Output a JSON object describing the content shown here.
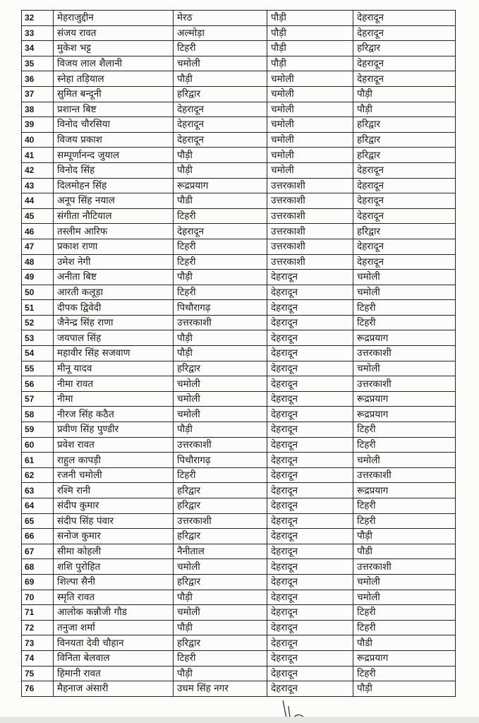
{
  "table": {
    "rows": [
      [
        "32",
        "मेहराजुद्दीन",
        "मेरठ",
        "पौड़ी",
        "देहरादून"
      ],
      [
        "33",
        "संजय रावत",
        "अल्मोड़ा",
        "पौड़ी",
        "देहरादून"
      ],
      [
        "34",
        "मुकेश भट्ट",
        "टिहरी",
        "पौड़ी",
        "हरिद्वार"
      ],
      [
        "35",
        "विजय लाल शैलानी",
        "चमोली",
        "पौड़ी",
        "देहरादून"
      ],
      [
        "36",
        "स्नेहा तड़ियाल",
        "पौड़ी",
        "चमोली",
        "देहरादून"
      ],
      [
        "37",
        "सुमित बन्दूनी",
        "हरिद्वार",
        "चमोली",
        "पौड़ी"
      ],
      [
        "38",
        "प्रशान्त बिष्ट",
        "देहरादून",
        "चमोली",
        "पौड़ी"
      ],
      [
        "39",
        "विनोद चौरसिया",
        "देहरादून",
        "चमोली",
        "हरिद्वार"
      ],
      [
        "40",
        "विजय प्रकाश",
        "देहरादून",
        "चमोली",
        "हरिद्वार"
      ],
      [
        "41",
        "सम्पूर्णानन्द जुयाल",
        "पौड़ी",
        "चमोली",
        "हरिद्वार"
      ],
      [
        "42",
        "विनोद सिंह",
        "पौड़ी",
        "चमोली",
        "देहरादून"
      ],
      [
        "43",
        "दिलमोहन सिंह",
        "रूद्रप्रयाग",
        "उत्तरकाशी",
        "देहरादून"
      ],
      [
        "44",
        "अनूप सिंह नयाल",
        "पौडी",
        "उत्तरकाशी",
        "देहरादून"
      ],
      [
        "45",
        "संगीता नौटियाल",
        "टिहरी",
        "उत्तरकाशी",
        "देहरादून"
      ],
      [
        "46",
        "तस्लीम आरिफ",
        "देहरादून",
        "उत्तरकाशी",
        "हरिद्वार"
      ],
      [
        "47",
        "प्रकाश राणा",
        "टिहरी",
        "उत्तरकाशी",
        "देहरादून"
      ],
      [
        "48",
        "उमेश नेगी",
        "टिहरी",
        "उत्तरकाशी",
        "देहरादून"
      ],
      [
        "49",
        "अनीता बिष्ट",
        "पौड़ी",
        "देहरादून",
        "चमोली"
      ],
      [
        "50",
        "आरती कलूड़ा",
        "टिहरी",
        "देहरादून",
        "चमोली"
      ],
      [
        "51",
        "दीपक द्विवेदी",
        "पिथौरागढ़",
        "देहरादून",
        "टिहरी"
      ],
      [
        "52",
        "जैनेन्द्र सिंह राणा",
        "उत्तरकाशी",
        "देहरादून",
        "टिहरी"
      ],
      [
        "53",
        "जयपाल सिंह",
        "पौड़ी",
        "देहरादून",
        "रूद्रप्रयाग"
      ],
      [
        "54",
        "महावीर सिंह सजवाण",
        "पौड़ी",
        "देहरादून",
        "उत्तरकाशी"
      ],
      [
        "55",
        "मीनू यादव",
        "हरिद्वार",
        "देहरादून",
        "चमोली"
      ],
      [
        "56",
        "नीमा रावत",
        "चमोली",
        "देहरादून",
        "उत्तरकाशी"
      ],
      [
        "57",
        "नीमा",
        "चमोली",
        "देहरादून",
        "रूद्रप्रयाग"
      ],
      [
        "58",
        "नीरज सिंह कठैत",
        "चमोली",
        "देहरादून",
        "रूद्रप्रयाग"
      ],
      [
        "59",
        "प्रवीण सिंह पुण्डीर",
        "पौड़ी",
        "देहरादून",
        "टिहरी"
      ],
      [
        "60",
        "प्रवेश रावत",
        "उत्तरकाशी",
        "देहरादून",
        "टिहरी"
      ],
      [
        "61",
        "राहुल कापड़ी",
        "पिथौरागढ़",
        "देहरादून",
        "चमोली"
      ],
      [
        "62",
        "रजनी चमोली",
        "टिहरी",
        "देहरादून",
        "उत्तरकाशी"
      ],
      [
        "63",
        "रश्मि रानी",
        "हरिद्वार",
        "देहरादून",
        "रूद्रप्रयाग"
      ],
      [
        "64",
        "संदीप कुमार",
        "हरिद्वार",
        "देहरादून",
        "टिहरी"
      ],
      [
        "65",
        "संदीप सिंह पंवार",
        "उत्तरकाशी",
        "देहरादून",
        "टिहरी"
      ],
      [
        "66",
        "सनोज कुमार",
        "हरिद्वार",
        "देहरादून",
        "पौड़ी"
      ],
      [
        "67",
        "सीमा कोहली",
        "नैनीताल",
        "देहरादून",
        "पौडी"
      ],
      [
        "68",
        "शशि पुरोहित",
        "चमोली",
        "देहरादून",
        "उत्तरकाशी"
      ],
      [
        "69",
        "शिल्पा सैनी",
        "हरिद्वार",
        "देहरादून",
        "चमोली"
      ],
      [
        "70",
        "स्मृति रावत",
        "पौड़ी",
        "देहरादून",
        "चमोली"
      ],
      [
        "71",
        "आलोक कन्नौजी गौड",
        "चमोली",
        "देहरादून",
        "टिहरी"
      ],
      [
        "72",
        "तनुजा शर्मा",
        "पौड़ी",
        "देहरादून",
        "टिहरी"
      ],
      [
        "73",
        "विनयता देवी चौहान",
        "हरिद्वार",
        "देहरादून",
        "पौडी"
      ],
      [
        "74",
        "विनिता बेलवाल",
        "टिहरी",
        "देहरादून",
        "रूद्रप्रयाग"
      ],
      [
        "75",
        "हिमानी रावत",
        "पौड़ी",
        "देहरादून",
        "टिहरी"
      ],
      [
        "76",
        "मैहनाज अंसारी",
        "उधम सिंह नगर",
        "देहरादून",
        "पौड़ी"
      ]
    ]
  }
}
